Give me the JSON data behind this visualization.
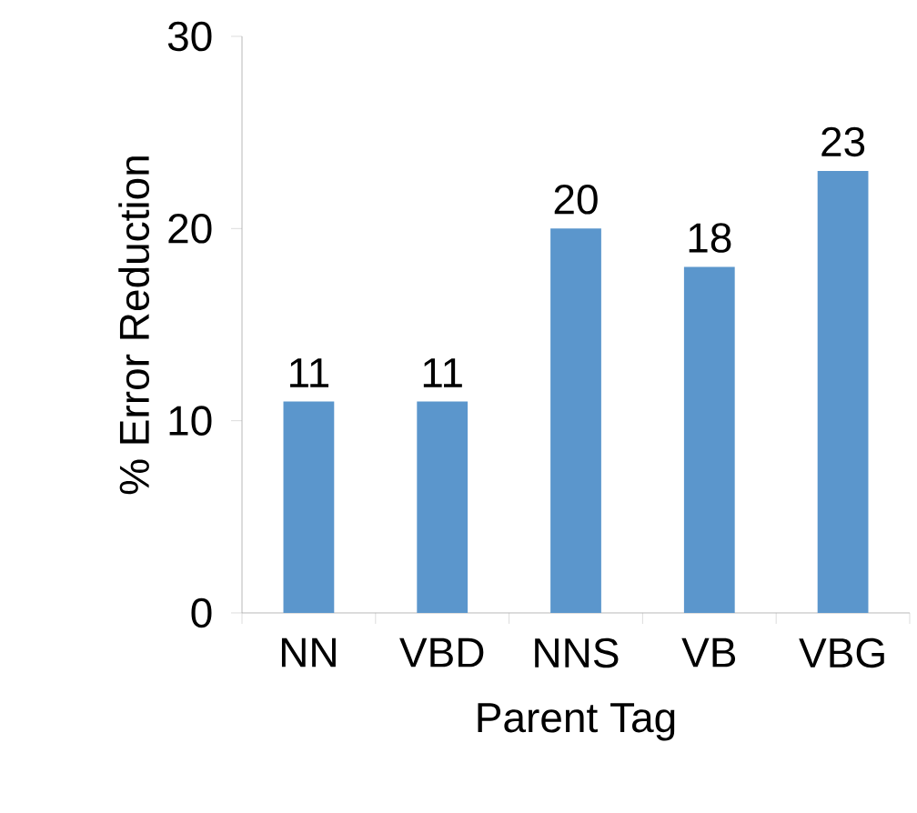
{
  "chart_data": {
    "type": "bar",
    "xlabel": "Parent Tag",
    "ylabel": "% Error Reduction",
    "categories": [
      "NN",
      "VBD",
      "NNS",
      "VB",
      "VBG"
    ],
    "values": [
      11,
      11,
      20,
      18,
      23
    ],
    "color": "#5b96cc",
    "ylim": [
      0,
      30
    ],
    "yticks": [
      0,
      10,
      20,
      30
    ],
    "data_labels": true
  }
}
